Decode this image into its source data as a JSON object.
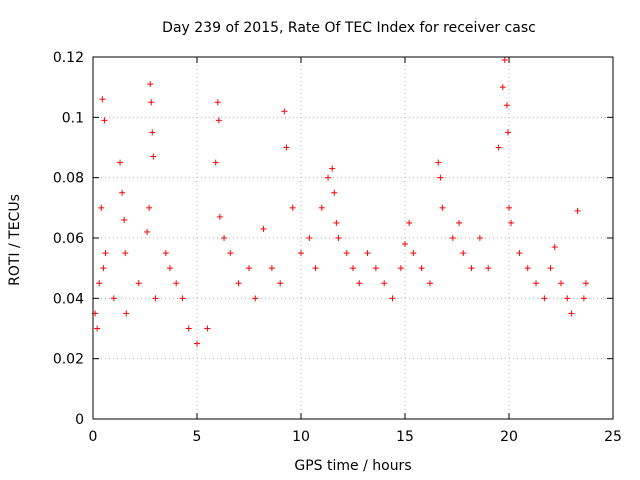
{
  "chart_data": {
    "type": "scatter",
    "title": "Day 239 of 2015, Rate Of TEC Index for receiver casc",
    "xlabel": "GPS time / hours",
    "ylabel": "ROTI / TECUs",
    "xlim": [
      0,
      25
    ],
    "ylim": [
      0,
      0.12
    ],
    "xticks": [
      0,
      5,
      10,
      15,
      20,
      25
    ],
    "xtick_labels": [
      "0",
      "5",
      "10",
      "15",
      "20",
      "25"
    ],
    "yticks": [
      0,
      0.02,
      0.04,
      0.06,
      0.08,
      0.1,
      0.12
    ],
    "ytick_labels": [
      "0",
      "0.02",
      "0.04",
      "0.06",
      "0.08",
      "0.1",
      "0.12"
    ],
    "grid": true,
    "marker": "+",
    "series_color": "#ff0000",
    "series": [
      {
        "x": [
          0.1,
          0.2,
          0.3,
          0.4,
          0.45,
          0.5,
          0.55,
          0.6,
          1.0,
          1.3,
          1.4,
          1.5,
          1.55,
          1.6,
          2.2,
          2.6,
          2.7,
          2.75,
          2.8,
          2.85,
          2.9,
          3.0,
          3.5,
          3.7,
          4.0,
          4.3,
          4.6,
          5.0,
          5.5,
          5.9,
          6.0,
          6.05,
          6.1,
          6.3,
          6.6,
          7.0,
          7.5,
          7.8,
          8.2,
          8.6,
          9.0,
          9.2,
          9.3,
          9.6,
          10.0,
          10.4,
          10.7,
          11.0,
          11.3,
          11.5,
          11.6,
          11.7,
          11.8,
          12.2,
          12.5,
          12.8,
          13.2,
          13.6,
          14.0,
          14.4,
          14.8,
          15.0,
          15.2,
          15.4,
          15.8,
          16.2,
          16.6,
          16.7,
          16.8,
          17.3,
          17.6,
          17.8,
          18.2,
          18.6,
          19.0,
          19.5,
          19.7,
          19.8,
          19.9,
          19.95,
          20.0,
          20.1,
          20.5,
          20.9,
          21.3,
          21.7,
          22.0,
          22.2,
          22.5,
          22.8,
          23.0,
          23.3,
          23.6,
          23.7
        ],
        "y": [
          0.035,
          0.03,
          0.045,
          0.07,
          0.106,
          0.05,
          0.099,
          0.055,
          0.04,
          0.085,
          0.075,
          0.066,
          0.055,
          0.035,
          0.045,
          0.062,
          0.07,
          0.111,
          0.105,
          0.095,
          0.087,
          0.04,
          0.055,
          0.05,
          0.045,
          0.04,
          0.03,
          0.025,
          0.03,
          0.085,
          0.105,
          0.099,
          0.067,
          0.06,
          0.055,
          0.045,
          0.05,
          0.04,
          0.063,
          0.05,
          0.045,
          0.102,
          0.09,
          0.07,
          0.055,
          0.06,
          0.05,
          0.07,
          0.08,
          0.083,
          0.075,
          0.065,
          0.06,
          0.055,
          0.05,
          0.045,
          0.055,
          0.05,
          0.045,
          0.04,
          0.05,
          0.058,
          0.065,
          0.055,
          0.05,
          0.045,
          0.085,
          0.08,
          0.07,
          0.06,
          0.065,
          0.055,
          0.05,
          0.06,
          0.05,
          0.09,
          0.11,
          0.119,
          0.104,
          0.095,
          0.07,
          0.065,
          0.055,
          0.05,
          0.045,
          0.04,
          0.05,
          0.057,
          0.045,
          0.04,
          0.035,
          0.069,
          0.04,
          0.045
        ]
      }
    ]
  }
}
